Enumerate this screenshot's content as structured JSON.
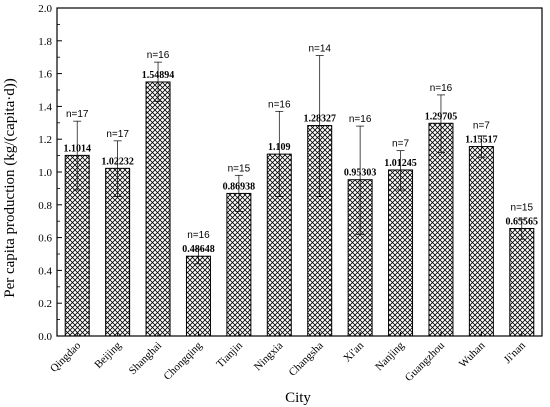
{
  "chart_data": {
    "type": "bar",
    "title": "",
    "xlabel": "City",
    "ylabel": "Per capita production (kg/(capita·d))",
    "ylim": [
      0.0,
      2.0
    ],
    "yticks": [
      "0.0",
      "0.2",
      "0.4",
      "0.6",
      "0.8",
      "1.0",
      "1.2",
      "1.4",
      "1.6",
      "1.8",
      "2.0"
    ],
    "grid": false,
    "legend": "none",
    "bar_fill": "crosshatch",
    "bar_color": "#000000",
    "categories": [
      "Qingdao",
      "Beijing",
      "Shanghai",
      "Chongqing",
      "Tianjin",
      "Ningxia",
      "Changsha",
      "Xi'an",
      "Nanjing",
      "Guangzhou",
      "Wuhan",
      "Ji'nan"
    ],
    "values": [
      1.1014,
      1.02232,
      1.54894,
      0.48648,
      0.86938,
      1.109,
      1.28327,
      0.95303,
      1.01245,
      1.29705,
      1.15517,
      0.65565
    ],
    "value_labels": [
      "1.1014",
      "1.02232",
      "1.54894",
      "0.48648",
      "0.86938",
      "1.109",
      "1.28327",
      "0.95303",
      "1.01245",
      "1.29705",
      "1.15517",
      "0.65565"
    ],
    "error_high": [
      1.31,
      1.19,
      1.67,
      0.53,
      0.98,
      1.37,
      1.71,
      1.28,
      1.13,
      1.47,
      1.22,
      0.71
    ],
    "error_low": [
      0.89,
      0.85,
      1.43,
      0.44,
      0.76,
      0.85,
      0.85,
      0.62,
      0.89,
      1.12,
      1.09,
      0.59
    ],
    "sample_labels": [
      "n=17",
      "n=17",
      "n=16",
      "n=16",
      "n=15",
      "n=16",
      "n=14",
      "n=16",
      "n=7",
      "n=16",
      "n=7",
      "n=15"
    ]
  }
}
